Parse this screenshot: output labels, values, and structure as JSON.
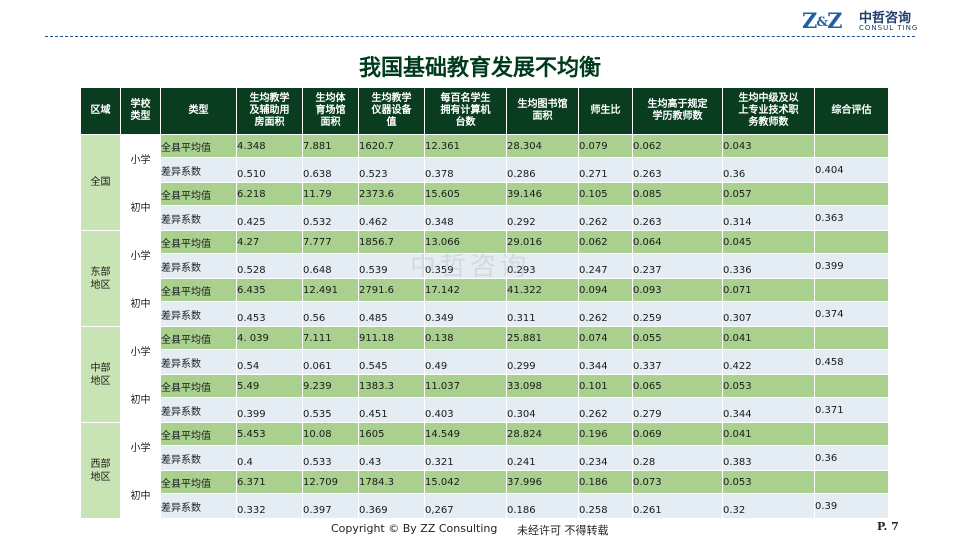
{
  "logo": {
    "mark_left": "Z",
    "mark_amp": "&",
    "mark_right": "Z",
    "cn": "中哲咨询",
    "en": "CONSUL TING"
  },
  "title": "我国基础教育发展不均衡",
  "watermark": "中哲咨询",
  "table": {
    "headers": [
      "区域",
      "学校类型",
      "类型",
      "生均教学及辅助用房面积",
      "生均体育场馆面积",
      "生均教学仪器设备值",
      "每百名学生拥有计算机台数",
      "生均图书馆面积",
      "师生比",
      "生均高于规定学历教师数",
      "生均中级及以上专业技术职务教师数",
      "综合评估"
    ],
    "header_lines": [
      [
        "区域"
      ],
      [
        "学校",
        "类型"
      ],
      [
        "类型"
      ],
      [
        "生均教学",
        "及辅助用",
        "房面积"
      ],
      [
        "生均体",
        "育场馆",
        "面积"
      ],
      [
        "生均教学",
        "仪器设备",
        "值"
      ],
      [
        "每百名学生",
        "拥有计算机",
        "台数"
      ],
      [
        "生均图书馆",
        "面积"
      ],
      [
        "师生比"
      ],
      [
        "生均高于规定",
        "学历教师数"
      ],
      [
        "生均中级及以",
        "上专业技术职",
        "务教师数"
      ],
      [
        "综合评估"
      ]
    ],
    "regions": [
      {
        "name": "全国",
        "name_lines": [
          "全国"
        ],
        "schools": [
          {
            "type": "小学",
            "rows": [
              {
                "label": "全县平均值",
                "values": [
                  "4.348",
                  "7.881",
                  "1620.7",
                  "12.361",
                  "28.304",
                  "0.079",
                  "0.062",
                  "0.043",
                  ""
                ]
              },
              {
                "label": "差异系数",
                "values": [
                  "0.510",
                  "0.638",
                  "0.523",
                  "0.378",
                  "0.286",
                  "0.271",
                  "0.263",
                  "0.36",
                  "0.404"
                ]
              }
            ]
          },
          {
            "type": "初中",
            "rows": [
              {
                "label": "全县平均值",
                "values": [
                  "6.218",
                  "11.79",
                  "2373.6",
                  "15.605",
                  "39.146",
                  "0.105",
                  "0.085",
                  "0.057",
                  ""
                ]
              },
              {
                "label": "差异系数",
                "values": [
                  "0.425",
                  "0.532",
                  "0.462",
                  "0.348",
                  "0.292",
                  "0.262",
                  "0.263",
                  "0.314",
                  "0.363"
                ]
              }
            ]
          }
        ]
      },
      {
        "name": "东部地区",
        "name_lines": [
          "东部",
          "地区"
        ],
        "schools": [
          {
            "type": "小学",
            "rows": [
              {
                "label": "全县平均值",
                "values": [
                  "4.27",
                  "7.777",
                  "1856.7",
                  "13.066",
                  "29.016",
                  "0.062",
                  "0.064",
                  "0.045",
                  ""
                ]
              },
              {
                "label": "差异系数",
                "values": [
                  "0.528",
                  "0.648",
                  "0.539",
                  "0.359",
                  "0.293",
                  "0.247",
                  "0.237",
                  "0.336",
                  "0.399"
                ]
              }
            ]
          },
          {
            "type": "初中",
            "rows": [
              {
                "label": "全县平均值",
                "values": [
                  "6.435",
                  "12.491",
                  "2791.6",
                  "17.142",
                  "41.322",
                  "0.094",
                  "0.093",
                  "0.071",
                  ""
                ]
              },
              {
                "label": "差异系数",
                "values": [
                  "0.453",
                  "0.56",
                  "0.485",
                  "0.349",
                  "0.311",
                  "0.262",
                  "0.259",
                  "0.307",
                  "0.374"
                ]
              }
            ]
          }
        ]
      },
      {
        "name": "中部地区",
        "name_lines": [
          "中部",
          "地区"
        ],
        "schools": [
          {
            "type": "小学",
            "rows": [
              {
                "label": "全县平均值",
                "values": [
                  "4. 039",
                  "7.111",
                  "911.18",
                  "0.138",
                  "25.881",
                  "0.074",
                  "0.055",
                  "0.041",
                  ""
                ]
              },
              {
                "label": "差异系数",
                "values": [
                  "0.54",
                  "0.061",
                  "0.545",
                  "0.49",
                  "0.299",
                  "0.344",
                  "0.337",
                  "0.422",
                  "0.458"
                ]
              }
            ]
          },
          {
            "type": "初中",
            "rows": [
              {
                "label": "全县平均值",
                "values": [
                  "5.49",
                  "9.239",
                  "1383.3",
                  "11.037",
                  "33.098",
                  "0.101",
                  "0.065",
                  "0.053",
                  ""
                ]
              },
              {
                "label": "差异系数",
                "values": [
                  "0.399",
                  "0.535",
                  "0.451",
                  "0.403",
                  "0.304",
                  "0.262",
                  "0.279",
                  "0.344",
                  "0.371"
                ]
              }
            ]
          }
        ]
      },
      {
        "name": "西部地区",
        "name_lines": [
          "西部",
          "地区"
        ],
        "schools": [
          {
            "type": "小学",
            "rows": [
              {
                "label": "全县平均值",
                "values": [
                  "5.453",
                  "10.08",
                  "1605",
                  "14.549",
                  "28.824",
                  "0.196",
                  "0.069",
                  "0.041",
                  ""
                ]
              },
              {
                "label": "差异系数",
                "values": [
                  "0.4",
                  "0.533",
                  "0.43",
                  "0.321",
                  "0.241",
                  "0.234",
                  "0.28",
                  "0.383",
                  "0.36"
                ]
              }
            ]
          },
          {
            "type": "初中",
            "rows": [
              {
                "label": "全县平均值",
                "values": [
                  "6.371",
                  "12.709",
                  "1784.3",
                  "15.042",
                  "37.996",
                  "0.186",
                  "0.073",
                  "0.053",
                  ""
                ]
              },
              {
                "label": "差异系数",
                "values": [
                  "0.332",
                  "0.397",
                  "0.369",
                  "0,267",
                  "0.186",
                  "0.258",
                  "0.261",
                  "0.32",
                  "0.39"
                ]
              }
            ]
          }
        ]
      }
    ]
  },
  "footer": {
    "copyright": "Copyright © By  ZZ Consulting",
    "notice": "未经许可 不得转载",
    "page": "P. 7"
  }
}
